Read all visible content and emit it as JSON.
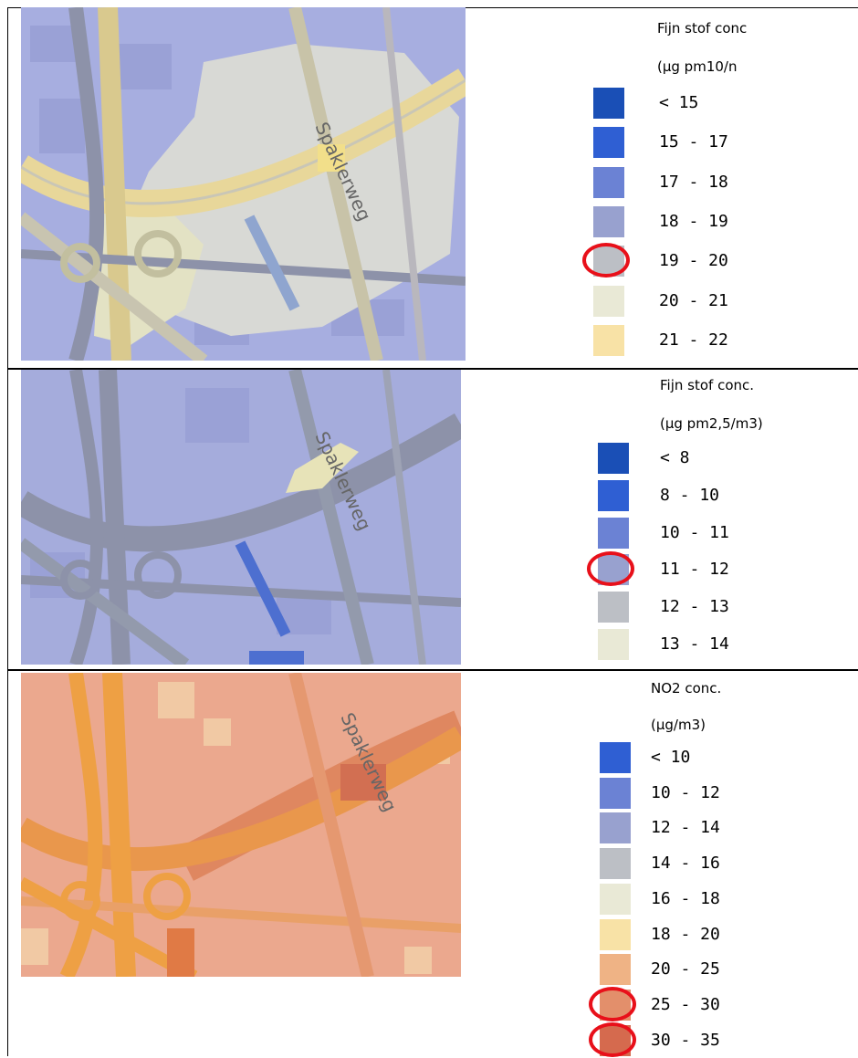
{
  "panels": [
    {
      "road_label": "Spaklerweg",
      "map_tone": "blue",
      "legend": {
        "title": "Fijn stof con\u0000",
        "unit": "(µg pm10/n",
        "classes": [
          {
            "label": "< 15",
            "color": "#1a4fb6",
            "marked": false
          },
          {
            "label": "15 - 17",
            "color": "#2f5fd3",
            "marked": false
          },
          {
            "label": "17 - 18",
            "color": "#6b82d4",
            "marked": false
          },
          {
            "label": "18 - 19",
            "color": "#98a1cf",
            "marked": false
          },
          {
            "label": "19 - 20",
            "color": "#bcbfc5",
            "marked": true
          },
          {
            "label": "20 - 21",
            "color": "#e9e9d6",
            "marked": false
          },
          {
            "label": "21 - 22",
            "color": "#f8e2a6",
            "marked": false
          }
        ]
      }
    },
    {
      "road_label": "Spaklerweg",
      "map_tone": "blue",
      "legend": {
        "title": "Fijn stof conc.",
        "unit": "(µg pm2,5/m3)",
        "classes": [
          {
            "label": "< 8",
            "color": "#1a4fb6",
            "marked": false
          },
          {
            "label": "8 - 10",
            "color": "#2f5fd3",
            "marked": false
          },
          {
            "label": "10 - 11",
            "color": "#6b82d4",
            "marked": false
          },
          {
            "label": "11 - 12",
            "color": "#98a1cf",
            "marked": true
          },
          {
            "label": "12 - 13",
            "color": "#bcbfc5",
            "marked": false
          },
          {
            "label": "13 - 14",
            "color": "#e9e9d6",
            "marked": false
          }
        ]
      }
    },
    {
      "road_label": "Spaklerweg",
      "map_tone": "orange",
      "legend": {
        "title": "NO2 conc.",
        "unit": "(µg/m3)",
        "classes": [
          {
            "label": "< 10",
            "color": "#2f5fd3",
            "marked": false
          },
          {
            "label": "10 - 12",
            "color": "#6b82d4",
            "marked": false
          },
          {
            "label": "12 - 14",
            "color": "#98a1cf",
            "marked": false
          },
          {
            "label": "14 - 16",
            "color": "#bcbfc5",
            "marked": false
          },
          {
            "label": "16 - 18",
            "color": "#e9e9d6",
            "marked": false
          },
          {
            "label": "18 - 20",
            "color": "#f8e2a6",
            "marked": false
          },
          {
            "label": "20 - 25",
            "color": "#efb385",
            "marked": false
          },
          {
            "label": "25 - 30",
            "color": "#e38f6b",
            "marked": true
          },
          {
            "label": "30 - 35",
            "color": "#d56a4e",
            "marked": true
          }
        ]
      }
    }
  ]
}
